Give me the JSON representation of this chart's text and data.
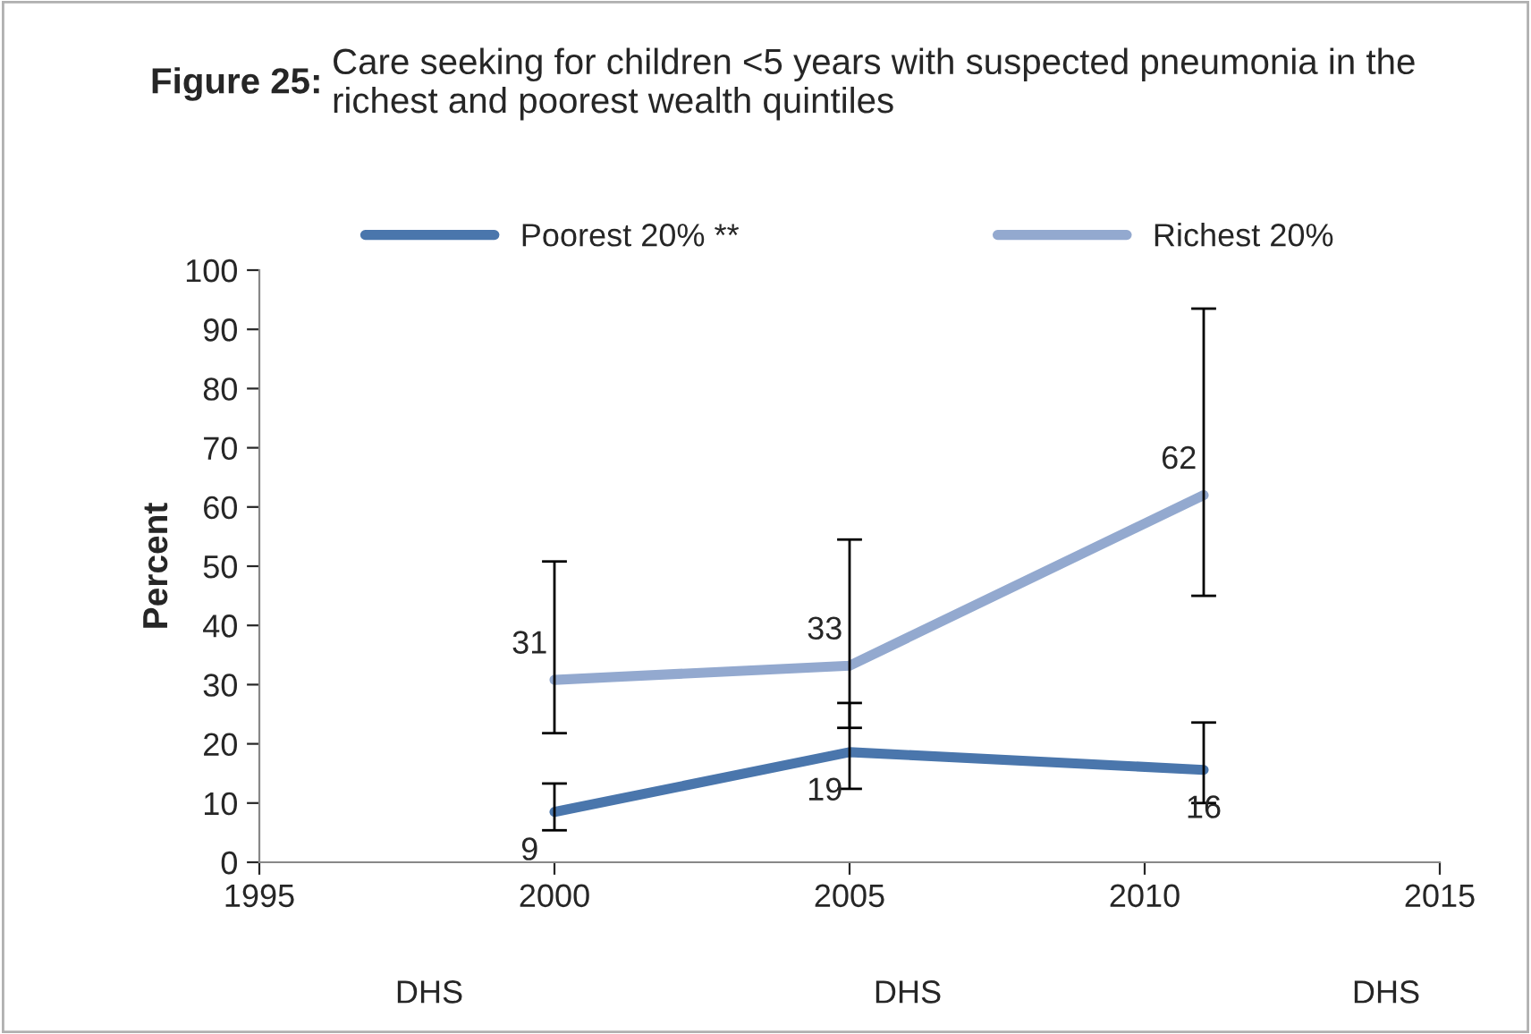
{
  "chart_data": {
    "type": "line",
    "title": "Figure 25: Care seeking for children <5 years with suspected pneumonia in the richest and poorest wealth quintiles",
    "ylabel": "Percent",
    "annotations": [
      "DHS",
      "DHS",
      "DHS"
    ],
    "series": [
      {
        "name": "Poorest 20% **",
        "color": "#4a76ac",
        "x": [
          2000,
          2005,
          2011
        ],
        "values": [
          8.5,
          18.6,
          15.6
        ],
        "errors": [
          [
            5.4,
            13.3
          ],
          [
            12.4,
            26.9
          ],
          [
            10,
            23.6
          ]
        ],
        "value_labels": [
          "9",
          "19",
          "16"
        ]
      },
      {
        "name": "Richest 20%",
        "color": "#93a9cf",
        "x": [
          2000,
          2005,
          2011
        ],
        "values": [
          30.8,
          33.2,
          62
        ],
        "errors": [
          [
            21.8,
            50.8
          ],
          [
            22.7,
            54.5
          ],
          [
            45,
            93.5
          ]
        ],
        "value_labels": [
          "31",
          "33",
          "62"
        ]
      }
    ],
    "xlim": [
      1995,
      2015
    ],
    "xticks": [
      1995,
      2000,
      2005,
      2010,
      2015
    ],
    "ylim": [
      0,
      100
    ],
    "yticks": [
      0,
      10,
      20,
      30,
      40,
      50,
      60,
      70,
      80,
      90,
      100
    ],
    "grid": false,
    "legend": "top",
    "marker": "none",
    "line_style": "solid"
  }
}
